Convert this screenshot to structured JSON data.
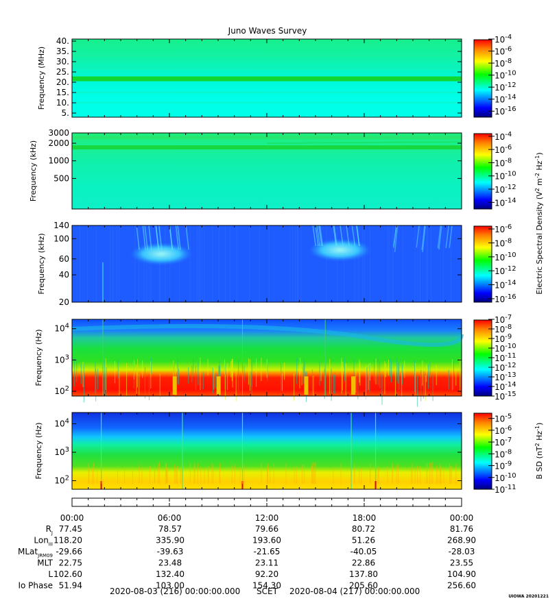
{
  "chart_data": {
    "type": "heatmap",
    "title": "Juno Waves Survey",
    "panels": [
      {
        "ylabel": "Frequency (MHz)",
        "yscale": "linear",
        "ylim": [
          3,
          41
        ],
        "yticks": [
          "5.",
          "10.",
          "15.",
          "20.",
          "25.",
          "30.",
          "35.",
          "40."
        ],
        "ytick_values": [
          5,
          10,
          15,
          20,
          25,
          30,
          35,
          40
        ],
        "colorbar_ticks": [
          "10^-4",
          "10^-6",
          "10^-8",
          "10^-10",
          "10^-12",
          "10^-14",
          "10^-16"
        ],
        "colorbar_exponents": [
          -4,
          -6,
          -8,
          -10,
          -12,
          -14,
          -16
        ],
        "colorbar_range": [
          -17,
          -4
        ],
        "features": [
          {
            "kind": "band",
            "y": 21.5,
            "description": "green band at ~21.5 MHz"
          }
        ]
      },
      {
        "ylabel": "Frequency (kHz)",
        "yscale": "log",
        "ylim": [
          150,
          3000
        ],
        "yticks": [
          "3000",
          "2000",
          "1000",
          "500"
        ],
        "ytick_values": [
          3000,
          2000,
          1000,
          500
        ],
        "colorbar_ticks": [
          "10^-4",
          "10^-6",
          "10^-8",
          "10^-10",
          "10^-12",
          "10^-14"
        ],
        "colorbar_exponents": [
          -4,
          -6,
          -8,
          -10,
          -12,
          -14
        ],
        "colorbar_range": [
          -15,
          -3.5
        ],
        "features": [
          {
            "kind": "band",
            "y": 1700,
            "description": "green band near 1.7 MHz"
          }
        ]
      },
      {
        "ylabel": "Frequency (kHz)",
        "yscale": "log",
        "ylim": [
          20,
          140
        ],
        "yticks": [
          "140",
          "100",
          "60",
          "40",
          "20"
        ],
        "ytick_values": [
          140,
          100,
          60,
          40,
          20
        ],
        "colorbar_ticks": [
          "10^-6",
          "10^-8",
          "10^-10",
          "10^-12",
          "10^-14",
          "10^-16"
        ],
        "colorbar_exponents": [
          -6,
          -8,
          -10,
          -12,
          -14,
          -16
        ],
        "colorbar_range": [
          -16.5,
          -5.5
        ],
        "features": [
          {
            "kind": "blob",
            "x_hours": 5.5,
            "y": 68
          },
          {
            "kind": "blob",
            "x_hours": 16.5,
            "y": 75
          }
        ]
      },
      {
        "ylabel": "Frequency (Hz)",
        "yscale": "log",
        "ylim": [
          70,
          20000
        ],
        "yticks": [
          "10^4",
          "10^3",
          "10^2"
        ],
        "ytick_values": [
          10000,
          1000,
          100
        ],
        "colorbar_ticks": [
          "10^-7",
          "10^-8",
          "10^-9",
          "10^-10",
          "10^-11",
          "10^-12",
          "10^-13",
          "10^-14",
          "10^-15"
        ],
        "colorbar_exponents": [
          -7,
          -8,
          -9,
          -10,
          -11,
          -12,
          -13,
          -14,
          -15
        ],
        "colorbar_range": [
          -15,
          -7
        ],
        "features": [
          {
            "kind": "band",
            "y": 200,
            "description": "intense red band 100-300 Hz"
          }
        ]
      },
      {
        "ylabel": "Frequency (Hz)",
        "yscale": "log",
        "ylim": [
          50,
          25000
        ],
        "yticks": [
          "10^4",
          "10^3",
          "10^2"
        ],
        "ytick_values": [
          10000,
          1000,
          100
        ],
        "colorbar_ticks": [
          "10^-5",
          "10^-6",
          "10^-7",
          "10^-8",
          "10^-9",
          "10^-10",
          "10^-11"
        ],
        "colorbar_exponents": [
          -5,
          -6,
          -7,
          -8,
          -9,
          -10,
          -11
        ],
        "colorbar_range": [
          -11,
          -4.5
        ],
        "features": [
          {
            "kind": "band",
            "y": 100,
            "description": "yellow band below ~200 Hz"
          }
        ]
      }
    ],
    "colorbar_label_e": "Electric Spectral Density (V^2 m^-2 Hz^-1)",
    "colorbar_label_b": "B SD (nT^2 Hz^-1)",
    "x_axis": {
      "range_hours": [
        0,
        24
      ],
      "ticks": [
        "00:00",
        "06:00",
        "12:00",
        "18:00",
        "00:00"
      ],
      "tick_hours": [
        0,
        6,
        12,
        18,
        24
      ]
    },
    "ephemeris": [
      {
        "label": "R",
        "sub": "J",
        "values": [
          "77.45",
          "78.57",
          "79.66",
          "80.72",
          "81.76"
        ]
      },
      {
        "label": "Lon",
        "sub": "III",
        "values": [
          "118.20",
          "335.90",
          "193.60",
          "51.26",
          "268.90"
        ]
      },
      {
        "label": "MLat",
        "sub": "JRM09",
        "values": [
          "-29.66",
          "-39.63",
          "-21.65",
          "-40.05",
          "-28.03"
        ]
      },
      {
        "label": "MLT",
        "sub": "",
        "values": [
          "22.75",
          "23.48",
          "23.11",
          "22.86",
          "23.55"
        ]
      },
      {
        "label": "L",
        "sub": "",
        "values": [
          "102.60",
          "132.40",
          "92.20",
          "137.80",
          "104.90"
        ]
      },
      {
        "label": "Io Phase",
        "sub": "",
        "values": [
          "51.94",
          "103.00",
          "154.30",
          "205.60",
          "256.60"
        ]
      }
    ],
    "time_footer": {
      "start": "2020-08-03 (216) 00:00:00.000",
      "label": "SCET",
      "end": "2020-08-04 (217) 00:00:00.000"
    },
    "stamp": "UIOWA 20201221"
  }
}
